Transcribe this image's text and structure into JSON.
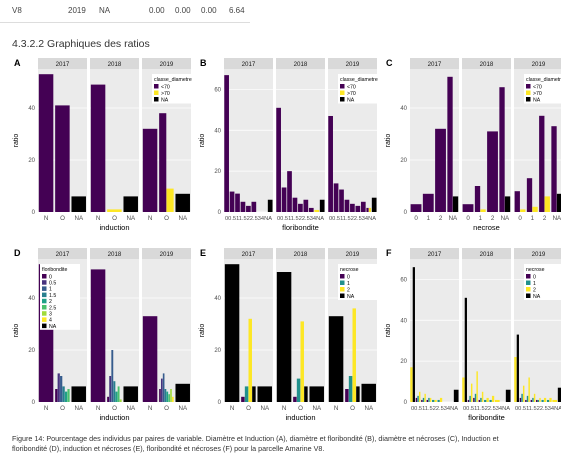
{
  "table_row": {
    "id": "V8",
    "year": "2019",
    "na": "NA",
    "v1": "0.00",
    "v2": "0.00",
    "v3": "0.00",
    "v4": "6.64"
  },
  "section_heading": "4.3.2.2 Graphiques des ratios",
  "caption_line1": "Figure 14: Pourcentage des individus par paires de variable. Diamètre et Induction (A), diamètre et floribondité (B), diamètre et nécroses (C), Induction et",
  "caption_line2": "floribondité (D), induction et nécroses (E), floribondité et nécroses (F) pour la parcelle Amarine V8.",
  "colors": {
    "diam_lt70": "#440154",
    "diam_gt70": "#FDE725",
    "na": "#000000",
    "flor_0": "#440154",
    "flor_05": "#46327E",
    "flor_1": "#365C8D",
    "flor_15": "#277F8E",
    "flor_2": "#1FA187",
    "flor_25": "#4AC16D",
    "flor_3": "#A0DA39",
    "flor_4": "#FDE725",
    "nec_0": "#440154",
    "nec_1": "#21908C",
    "nec_2": "#FDE725",
    "panel_bg": "#EBEBEB",
    "strip_bg": "#D9D9D9",
    "grid": "#FFFFFF"
  },
  "chart_data": [
    {
      "id": "A",
      "type": "bar",
      "stacked": false,
      "facets": [
        "2017",
        "2018",
        "2019"
      ],
      "categories": [
        "N",
        "O",
        "NA"
      ],
      "xlabel": "induction",
      "ylabel": "ratio",
      "ylim": [
        0,
        55
      ],
      "yticks": [
        0,
        20,
        40
      ],
      "legend": {
        "title": "classe_diametre",
        "placement": "right-inside-last-facet",
        "keys": [
          {
            "label": "<70",
            "color_key": "diam_lt70"
          },
          {
            "label": ">70",
            "color_key": "diam_gt70"
          },
          {
            "label": "NA",
            "color_key": "na"
          }
        ]
      },
      "series": [
        {
          "name": "<70",
          "color_key": "diam_lt70",
          "values": [
            [
              53,
              41,
              0
            ],
            [
              49,
              0,
              0
            ],
            [
              32,
              38,
              0
            ]
          ]
        },
        {
          "name": ">70",
          "color_key": "diam_gt70",
          "values": [
            [
              0,
              0,
              0
            ],
            [
              0,
              1,
              0
            ],
            [
              0,
              9,
              0
            ]
          ]
        },
        {
          "name": "NA",
          "color_key": "na",
          "values": [
            [
              0,
              0,
              6
            ],
            [
              0,
              0,
              6
            ],
            [
              0,
              0,
              7
            ]
          ]
        }
      ]
    },
    {
      "id": "B",
      "type": "bar",
      "stacked": false,
      "facets": [
        "2017",
        "2018",
        "2019"
      ],
      "categories": [
        "0",
        "0.5",
        "1",
        "1.5",
        "2",
        "2.5",
        "3",
        "4",
        "NA"
      ],
      "tick_text": "00.511.522.534NA",
      "xlabel": "floribondite",
      "ylabel": "ratio",
      "ylim": [
        0,
        70
      ],
      "yticks": [
        0,
        20,
        40,
        60
      ],
      "legend": {
        "title": "classe_diametre",
        "placement": "right-inside-last-facet",
        "keys": [
          {
            "label": "<70",
            "color_key": "diam_lt70"
          },
          {
            "label": ">70",
            "color_key": "diam_gt70"
          },
          {
            "label": "NA",
            "color_key": "na"
          }
        ]
      },
      "series": [
        {
          "name": "<70",
          "color_key": "diam_lt70",
          "values": [
            [
              67,
              10,
              9,
              5,
              3,
              5,
              0,
              0,
              0
            ],
            [
              51,
              12,
              20,
              7,
              4,
              6,
              2,
              0,
              0
            ],
            [
              47,
              14,
              11,
              6,
              4,
              3,
              5,
              2,
              0
            ]
          ]
        },
        {
          "name": ">70",
          "color_key": "diam_gt70",
          "values": [
            [
              0,
              0,
              0,
              0,
              0,
              0,
              0,
              0,
              0
            ],
            [
              0,
              0,
              0,
              0,
              0,
              0,
              0,
              1,
              0
            ],
            [
              0,
              0,
              0,
              0,
              0,
              0,
              0,
              2,
              0
            ]
          ]
        },
        {
          "name": "NA",
          "color_key": "na",
          "values": [
            [
              0,
              0,
              0,
              0,
              0,
              0,
              0,
              0,
              6
            ],
            [
              0,
              0,
              0,
              0,
              0,
              0,
              0,
              0,
              6
            ],
            [
              0,
              0,
              0,
              0,
              0,
              0,
              0,
              0,
              7
            ]
          ]
        }
      ]
    },
    {
      "id": "C",
      "type": "bar",
      "stacked": false,
      "facets": [
        "2017",
        "2018",
        "2019"
      ],
      "categories": [
        "0",
        "1",
        "2",
        "NA"
      ],
      "xlabel": "necrose",
      "ylabel": "ratio",
      "ylim": [
        0,
        55
      ],
      "yticks": [
        0,
        20,
        40
      ],
      "legend": {
        "title": "classe_diametre",
        "placement": "right-inside-last-facet",
        "keys": [
          {
            "label": "<70",
            "color_key": "diam_lt70"
          },
          {
            "label": ">70",
            "color_key": "diam_gt70"
          },
          {
            "label": "NA",
            "color_key": "na"
          }
        ]
      },
      "series": [
        {
          "name": "<70",
          "color_key": "diam_lt70",
          "values": [
            [
              3,
              7,
              32,
              52
            ],
            [
              3,
              10,
              31,
              48
            ],
            [
              8,
              13,
              37,
              33
            ]
          ]
        },
        {
          "name": ">70",
          "color_key": "diam_gt70",
          "values": [
            [
              0,
              0,
              0,
              0
            ],
            [
              0,
              1,
              0,
              0
            ],
            [
              1,
              2,
              6,
              0
            ]
          ]
        },
        {
          "name": "NA",
          "color_key": "na",
          "values": [
            [
              0,
              0,
              0,
              6
            ],
            [
              0,
              0,
              0,
              6
            ],
            [
              0,
              0,
              0,
              7
            ]
          ]
        }
      ]
    },
    {
      "id": "D",
      "type": "bar",
      "stacked": false,
      "facets": [
        "2017",
        "2018",
        "2019"
      ],
      "categories": [
        "N",
        "O",
        "NA"
      ],
      "xlabel": "induction",
      "ylabel": "ratio",
      "ylim": [
        0,
        55
      ],
      "yticks": [
        0,
        20,
        40
      ],
      "legend": {
        "title": "floribondite",
        "placement": "left-inside-first-facet",
        "keys": [
          {
            "label": "0",
            "color_key": "flor_0"
          },
          {
            "label": "0.5",
            "color_key": "flor_05"
          },
          {
            "label": "1",
            "color_key": "flor_1"
          },
          {
            "label": "1.5",
            "color_key": "flor_15"
          },
          {
            "label": "2",
            "color_key": "flor_2"
          },
          {
            "label": "2.5",
            "color_key": "flor_25"
          },
          {
            "label": "3",
            "color_key": "flor_3"
          },
          {
            "label": "4",
            "color_key": "flor_4"
          },
          {
            "label": "NA",
            "color_key": "na"
          }
        ]
      },
      "series": [
        {
          "name": "0",
          "color_key": "flor_0",
          "values": [
            [
              53,
              5,
              0
            ],
            [
              51,
              2,
              0
            ],
            [
              33,
              5,
              0
            ]
          ]
        },
        {
          "name": "0.5",
          "color_key": "flor_05",
          "values": [
            [
              0,
              11,
              0
            ],
            [
              0,
              10,
              0
            ],
            [
              0,
              9,
              0
            ]
          ]
        },
        {
          "name": "1",
          "color_key": "flor_1",
          "values": [
            [
              0,
              10,
              0
            ],
            [
              0,
              20,
              0
            ],
            [
              0,
              11,
              0
            ]
          ]
        },
        {
          "name": "1.5",
          "color_key": "flor_15",
          "values": [
            [
              0,
              6,
              0
            ],
            [
              0,
              8,
              0
            ],
            [
              0,
              5,
              0
            ]
          ]
        },
        {
          "name": "2",
          "color_key": "flor_2",
          "values": [
            [
              0,
              4,
              0
            ],
            [
              0,
              4,
              0
            ],
            [
              0,
              4,
              0
            ]
          ]
        },
        {
          "name": "2.5",
          "color_key": "flor_25",
          "values": [
            [
              0,
              5,
              0
            ],
            [
              0,
              6,
              0
            ],
            [
              0,
              3,
              0
            ]
          ]
        },
        {
          "name": "3",
          "color_key": "flor_3",
          "values": [
            [
              0,
              0,
              0
            ],
            [
              0,
              1,
              0
            ],
            [
              0,
              5,
              0
            ]
          ]
        },
        {
          "name": "4",
          "color_key": "flor_4",
          "values": [
            [
              0,
              0,
              0
            ],
            [
              0,
              0,
              0
            ],
            [
              0,
              2,
              0
            ]
          ]
        },
        {
          "name": "NA",
          "color_key": "na",
          "values": [
            [
              0,
              0,
              6
            ],
            [
              0,
              0,
              6
            ],
            [
              0,
              0,
              7
            ]
          ]
        }
      ]
    },
    {
      "id": "E",
      "type": "bar",
      "stacked": false,
      "facets": [
        "2017",
        "2018",
        "2019"
      ],
      "categories": [
        "N",
        "O",
        "NA"
      ],
      "xlabel": "induction",
      "ylabel": "ratio",
      "ylim": [
        0,
        55
      ],
      "yticks": [
        0,
        20,
        40
      ],
      "legend": {
        "title": "necrose",
        "placement": "right-inside-last-facet",
        "keys": [
          {
            "label": "0",
            "color_key": "nec_0"
          },
          {
            "label": "1",
            "color_key": "nec_1"
          },
          {
            "label": "2",
            "color_key": "nec_2"
          },
          {
            "label": "NA",
            "color_key": "na"
          }
        ]
      },
      "series": [
        {
          "name": "0",
          "color_key": "nec_0",
          "values": [
            [
              0,
              2,
              0
            ],
            [
              0,
              2,
              0
            ],
            [
              0,
              5,
              0
            ]
          ]
        },
        {
          "name": "1",
          "color_key": "nec_1",
          "values": [
            [
              0,
              6,
              0
            ],
            [
              0,
              9,
              0
            ],
            [
              0,
              10,
              0
            ]
          ]
        },
        {
          "name": "2",
          "color_key": "nec_2",
          "values": [
            [
              0,
              32,
              0
            ],
            [
              0,
              31,
              0
            ],
            [
              0,
              36,
              0
            ]
          ]
        },
        {
          "name": "NA",
          "color_key": "na",
          "values": [
            [
              53,
              6,
              6
            ],
            [
              50,
              6,
              6
            ],
            [
              33,
              6,
              7
            ]
          ]
        }
      ]
    },
    {
      "id": "F",
      "type": "bar",
      "stacked": false,
      "facets": [
        "2017",
        "2018",
        "2019"
      ],
      "categories": [
        "0",
        "0.5",
        "1",
        "1.5",
        "2",
        "2.5",
        "3",
        "4",
        "NA"
      ],
      "tick_text": "00.511.522.534NA",
      "xlabel": "floribondite",
      "ylabel": "ratio",
      "ylim": [
        0,
        70
      ],
      "yticks": [
        0,
        20,
        40,
        60
      ],
      "legend": {
        "title": "necrose",
        "placement": "right-inside-last-facet",
        "keys": [
          {
            "label": "0",
            "color_key": "nec_0"
          },
          {
            "label": "1",
            "color_key": "nec_1"
          },
          {
            "label": "2",
            "color_key": "nec_2"
          },
          {
            "label": "NA",
            "color_key": "na"
          }
        ]
      },
      "series": [
        {
          "name": "0",
          "color_key": "nec_0",
          "values": [
            [
              0,
              2,
              1,
              1,
              0,
              0,
              0,
              0,
              0
            ],
            [
              0,
              1,
              2,
              1,
              0,
              0,
              0,
              0,
              0
            ],
            [
              0,
              2,
              1,
              1,
              1,
              0,
              0,
              0,
              0
            ]
          ]
        },
        {
          "name": "1",
          "color_key": "nec_1",
          "values": [
            [
              0,
              3,
              2,
              2,
              1,
              1,
              0,
              0,
              0
            ],
            [
              0,
              3,
              4,
              2,
              1,
              1,
              0,
              0,
              0
            ],
            [
              0,
              4,
              3,
              2,
              1,
              1,
              1,
              0,
              0
            ]
          ]
        },
        {
          "name": "2",
          "color_key": "nec_2",
          "values": [
            [
              17,
              5,
              4,
              2,
              1,
              2,
              0,
              0,
              0
            ],
            [
              12,
              9,
              15,
              5,
              2,
              3,
              1,
              0,
              0
            ],
            [
              22,
              8,
              12,
              4,
              2,
              2,
              2,
              1,
              0
            ]
          ]
        },
        {
          "name": "NA",
          "color_key": "na",
          "values": [
            [
              66,
              0,
              0,
              0,
              0,
              0,
              0,
              0,
              6
            ],
            [
              51,
              0,
              0,
              0,
              0,
              0,
              0,
              0,
              6
            ],
            [
              33,
              0,
              0,
              0,
              0,
              0,
              0,
              0,
              7
            ]
          ]
        }
      ]
    }
  ]
}
